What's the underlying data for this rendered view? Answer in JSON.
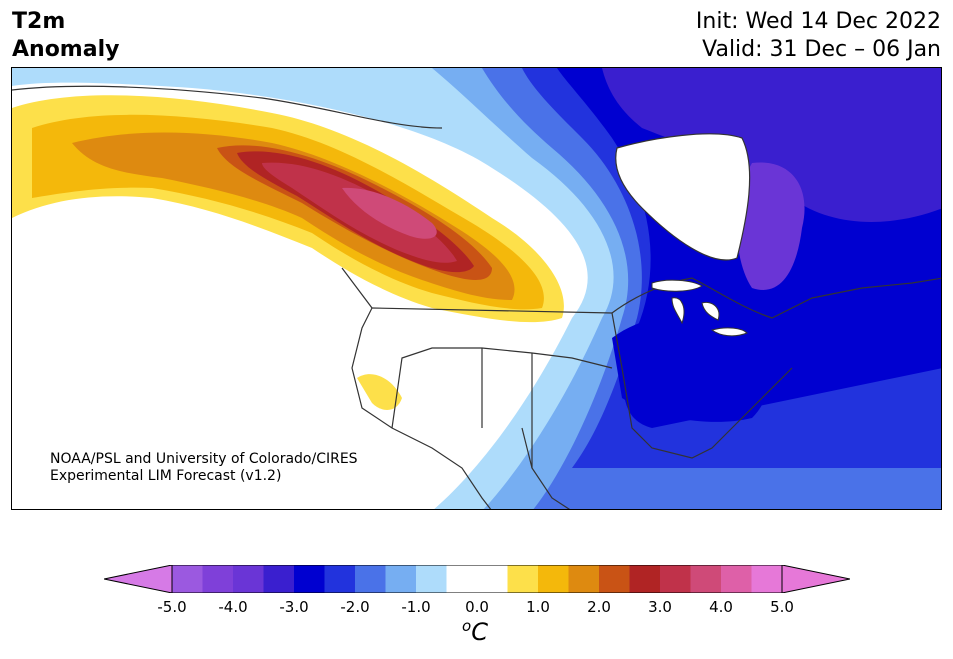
{
  "title": {
    "left_line1": "T2m",
    "left_line2": "Anomaly",
    "init": "Init: Wed 14 Dec 2022",
    "valid": "Valid: 31 Dec – 06 Jan"
  },
  "credit": {
    "line1": "NOAA/PSL and University of Colorado/CIRES",
    "line2": "Experimental LIM Forecast (v1.2)"
  },
  "colorbar": {
    "unit_base": "C",
    "unit_sup": "o",
    "min": -5.0,
    "max": 5.0,
    "bins": [
      {
        "from": -5.0,
        "to": -4.5,
        "color": "#9b59e0"
      },
      {
        "from": -4.5,
        "to": -4.0,
        "color": "#7f40d9"
      },
      {
        "from": -4.0,
        "to": -3.5,
        "color": "#6a35d6"
      },
      {
        "from": -3.5,
        "to": -3.0,
        "color": "#3a1fcf"
      },
      {
        "from": -3.0,
        "to": -2.5,
        "color": "#0000d0"
      },
      {
        "from": -2.5,
        "to": -2.0,
        "color": "#2233dd"
      },
      {
        "from": -2.0,
        "to": -1.5,
        "color": "#4a72e8"
      },
      {
        "from": -1.5,
        "to": -1.0,
        "color": "#76aef2"
      },
      {
        "from": -1.0,
        "to": -0.5,
        "color": "#aedcfb"
      },
      {
        "from": -0.5,
        "to": 0.5,
        "color": "#ffffff"
      },
      {
        "from": 0.5,
        "to": 1.0,
        "color": "#fde04a"
      },
      {
        "from": 1.0,
        "to": 1.5,
        "color": "#f4b80b"
      },
      {
        "from": 1.5,
        "to": 2.0,
        "color": "#de8a10"
      },
      {
        "from": 2.0,
        "to": 2.5,
        "color": "#c95315"
      },
      {
        "from": 2.5,
        "to": 3.0,
        "color": "#b02424"
      },
      {
        "from": 3.0,
        "to": 3.5,
        "color": "#c0324a"
      },
      {
        "from": 3.5,
        "to": 4.0,
        "color": "#cf4a78"
      },
      {
        "from": 4.0,
        "to": 4.5,
        "color": "#de60a8"
      },
      {
        "from": 4.5,
        "to": 5.0,
        "color": "#e678d8"
      }
    ],
    "under_color": "#d67ae6",
    "over_color": "#e678d8",
    "ticks": [
      "-5.0",
      "-4.0",
      "-3.0",
      "-2.0",
      "-1.0",
      "0.0",
      "1.0",
      "2.0",
      "3.0",
      "4.0",
      "5.0"
    ]
  },
  "map": {
    "region": "North America",
    "field": "2 m temperature anomaly"
  }
}
